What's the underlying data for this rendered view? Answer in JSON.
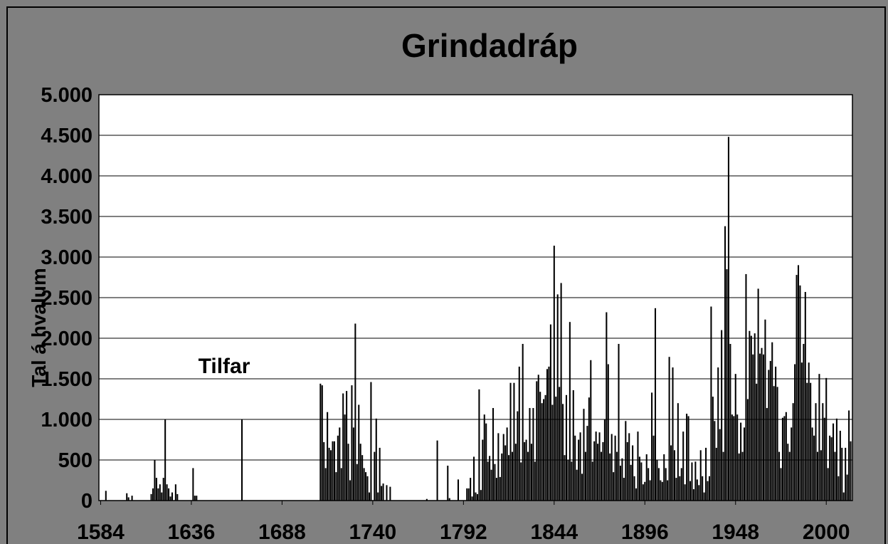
{
  "chart_data": {
    "type": "bar",
    "title": "Grindadráp",
    "ylabel": "Tal á hvalum",
    "annotation": "Tilfar",
    "color": "#000000",
    "grid": true,
    "xlim": [
      1583,
      2015
    ],
    "ylim": [
      0,
      5000
    ],
    "xticks": [
      1584,
      1636,
      1688,
      1740,
      1792,
      1844,
      1896,
      1948,
      2000
    ],
    "yticks": [
      0,
      {
        "value": 500,
        "label": "500"
      },
      {
        "value": 1000,
        "label": "1.000"
      },
      {
        "value": 1500,
        "label": "1.500"
      },
      {
        "value": 2000,
        "label": "2.000"
      },
      {
        "value": 2500,
        "label": "2.500"
      },
      {
        "value": 3000,
        "label": "3.000"
      },
      {
        "value": 3500,
        "label": "3.500"
      },
      {
        "value": 4000,
        "label": "4.000"
      },
      {
        "value": 4500,
        "label": "4.500"
      },
      {
        "value": 5000,
        "label": "5.000"
      }
    ],
    "x": [
      1584,
      1585,
      1586,
      1587,
      1588,
      1589,
      1590,
      1591,
      1592,
      1593,
      1594,
      1595,
      1596,
      1597,
      1598,
      1599,
      1600,
      1601,
      1602,
      1603,
      1604,
      1605,
      1606,
      1607,
      1608,
      1609,
      1610,
      1611,
      1612,
      1613,
      1614,
      1615,
      1616,
      1617,
      1618,
      1619,
      1620,
      1621,
      1622,
      1623,
      1624,
      1625,
      1626,
      1627,
      1628,
      1629,
      1630,
      1631,
      1632,
      1633,
      1634,
      1635,
      1636,
      1637,
      1638,
      1639,
      1640,
      1641,
      1642,
      1643,
      1644,
      1645,
      1646,
      1647,
      1648,
      1649,
      1650,
      1651,
      1652,
      1653,
      1654,
      1655,
      1656,
      1657,
      1658,
      1659,
      1660,
      1661,
      1662,
      1663,
      1664,
      1665,
      1666,
      1667,
      1668,
      1669,
      1670,
      1671,
      1672,
      1673,
      1674,
      1675,
      1676,
      1677,
      1678,
      1679,
      1680,
      1681,
      1682,
      1683,
      1684,
      1685,
      1686,
      1687,
      1688,
      1689,
      1690,
      1691,
      1692,
      1693,
      1694,
      1695,
      1696,
      1697,
      1698,
      1699,
      1700,
      1701,
      1702,
      1703,
      1704,
      1705,
      1706,
      1707,
      1708,
      1709,
      1710,
      1711,
      1712,
      1713,
      1714,
      1715,
      1716,
      1717,
      1718,
      1719,
      1720,
      1721,
      1722,
      1723,
      1724,
      1725,
      1726,
      1727,
      1728,
      1729,
      1730,
      1731,
      1732,
      1733,
      1734,
      1735,
      1736,
      1737,
      1738,
      1739,
      1740,
      1741,
      1742,
      1743,
      1744,
      1745,
      1746,
      1747,
      1748,
      1749,
      1750,
      1751,
      1752,
      1753,
      1754,
      1755,
      1756,
      1757,
      1758,
      1759,
      1760,
      1761,
      1762,
      1763,
      1764,
      1765,
      1766,
      1767,
      1768,
      1769,
      1770,
      1771,
      1772,
      1773,
      1774,
      1775,
      1776,
      1777,
      1778,
      1779,
      1780,
      1781,
      1782,
      1783,
      1784,
      1785,
      1786,
      1787,
      1788,
      1789,
      1790,
      1791,
      1792,
      1793,
      1794,
      1795,
      1796,
      1797,
      1798,
      1799,
      1800,
      1801,
      1802,
      1803,
      1804,
      1805,
      1806,
      1807,
      1808,
      1809,
      1810,
      1811,
      1812,
      1813,
      1814,
      1815,
      1816,
      1817,
      1818,
      1819,
      1820,
      1821,
      1822,
      1823,
      1824,
      1825,
      1826,
      1827,
      1828,
      1829,
      1830,
      1831,
      1832,
      1833,
      1834,
      1835,
      1836,
      1837,
      1838,
      1839,
      1840,
      1841,
      1842,
      1843,
      1844,
      1845,
      1846,
      1847,
      1848,
      1849,
      1850,
      1851,
      1852,
      1853,
      1854,
      1855,
      1856,
      1857,
      1858,
      1859,
      1860,
      1861,
      1862,
      1863,
      1864,
      1865,
      1866,
      1867,
      1868,
      1869,
      1870,
      1871,
      1872,
      1873,
      1874,
      1875,
      1876,
      1877,
      1878,
      1879,
      1880,
      1881,
      1882,
      1883,
      1884,
      1885,
      1886,
      1887,
      1888,
      1889,
      1890,
      1891,
      1892,
      1893,
      1894,
      1895,
      1896,
      1897,
      1898,
      1899,
      1900,
      1901,
      1902,
      1903,
      1904,
      1905,
      1906,
      1907,
      1908,
      1909,
      1910,
      1911,
      1912,
      1913,
      1914,
      1915,
      1916,
      1917,
      1918,
      1919,
      1920,
      1921,
      1922,
      1923,
      1924,
      1925,
      1926,
      1927,
      1928,
      1929,
      1930,
      1931,
      1932,
      1933,
      1934,
      1935,
      1936,
      1937,
      1938,
      1939,
      1940,
      1941,
      1942,
      1943,
      1944,
      1945,
      1946,
      1947,
      1948,
      1949,
      1950,
      1951,
      1952,
      1953,
      1954,
      1955,
      1956,
      1957,
      1958,
      1959,
      1960,
      1961,
      1962,
      1963,
      1964,
      1965,
      1966,
      1967,
      1968,
      1969,
      1970,
      1971,
      1972,
      1973,
      1974,
      1975,
      1976,
      1977,
      1978,
      1979,
      1980,
      1981,
      1982,
      1983,
      1984,
      1985,
      1986,
      1987,
      1988,
      1989,
      1990,
      1991,
      1992,
      1993,
      1994,
      1995,
      1996,
      1997,
      1998,
      1999,
      2000,
      2001,
      2002,
      2003,
      2004,
      2005,
      2006,
      2007,
      2008,
      2009,
      2010,
      2011,
      2012,
      2013,
      2014
    ],
    "values": [
      0,
      0,
      0,
      120,
      0,
      0,
      0,
      0,
      0,
      0,
      0,
      0,
      0,
      0,
      0,
      90,
      40,
      0,
      60,
      0,
      0,
      0,
      0,
      0,
      0,
      0,
      0,
      0,
      0,
      80,
      150,
      500,
      280,
      150,
      200,
      100,
      280,
      1000,
      200,
      150,
      50,
      100,
      0,
      200,
      80,
      0,
      0,
      0,
      0,
      0,
      0,
      0,
      0,
      400,
      60,
      60,
      0,
      0,
      0,
      0,
      0,
      0,
      0,
      0,
      0,
      0,
      0,
      0,
      0,
      0,
      0,
      0,
      0,
      0,
      0,
      0,
      0,
      0,
      0,
      0,
      0,
      1000,
      0,
      0,
      0,
      0,
      0,
      0,
      0,
      0,
      0,
      0,
      0,
      0,
      0,
      0,
      0,
      0,
      0,
      0,
      0,
      0,
      0,
      0,
      0,
      0,
      0,
      0,
      0,
      0,
      0,
      0,
      0,
      0,
      0,
      0,
      0,
      0,
      0,
      0,
      0,
      0,
      0,
      0,
      0,
      0,
      1440,
      1420,
      720,
      400,
      1090,
      650,
      620,
      730,
      730,
      350,
      800,
      900,
      400,
      1320,
      1060,
      1350,
      700,
      250,
      1420,
      900,
      2180,
      450,
      1180,
      700,
      560,
      400,
      350,
      300,
      100,
      1460,
      0,
      600,
      1010,
      100,
      650,
      180,
      210,
      0,
      190,
      0,
      170,
      0,
      0,
      0,
      0,
      0,
      0,
      0,
      0,
      0,
      0,
      0,
      0,
      0,
      0,
      0,
      0,
      0,
      0,
      0,
      0,
      20,
      0,
      0,
      0,
      0,
      0,
      740,
      0,
      0,
      0,
      0,
      0,
      430,
      30,
      0,
      0,
      0,
      0,
      260,
      0,
      0,
      0,
      0,
      150,
      150,
      280,
      50,
      540,
      100,
      80,
      1370,
      130,
      750,
      1060,
      950,
      480,
      550,
      380,
      1140,
      450,
      280,
      830,
      290,
      580,
      820,
      680,
      900,
      560,
      1450,
      600,
      1450,
      700,
      1100,
      1650,
      470,
      1930,
      720,
      750,
      600,
      1140,
      700,
      1140,
      480,
      1470,
      1550,
      1340,
      1200,
      1250,
      1300,
      1620,
      1650,
      2170,
      1180,
      3140,
      1280,
      2540,
      1400,
      2680,
      1190,
      560,
      1300,
      500,
      2200,
      480,
      1360,
      800,
      380,
      750,
      840,
      330,
      1130,
      600,
      920,
      1270,
      1730,
      480,
      730,
      850,
      700,
      840,
      600,
      720,
      1000,
      2320,
      1680,
      580,
      820,
      350,
      800,
      600,
      1930,
      430,
      520,
      280,
      980,
      720,
      830,
      440,
      680,
      300,
      150,
      850,
      540,
      470,
      200,
      230,
      570,
      400,
      250,
      1330,
      800,
      2370,
      500,
      400,
      250,
      230,
      570,
      400,
      250,
      1770,
      680,
      1640,
      620,
      280,
      1200,
      300,
      400,
      850,
      200,
      1070,
      1040,
      240,
      470,
      140,
      480,
      260,
      190,
      620,
      300,
      100,
      650,
      240,
      300,
      2390,
      1280,
      980,
      650,
      1640,
      880,
      2100,
      600,
      3380,
      2850,
      4480,
      1930,
      1060,
      1040,
      1560,
      1060,
      580,
      960,
      600,
      900,
      2790,
      1250,
      2090,
      2030,
      1800,
      2060,
      1440,
      2610,
      1810,
      1880,
      1800,
      2230,
      1140,
      1610,
      1720,
      1950,
      1410,
      1650,
      1400,
      600,
      400,
      1020,
      1040,
      1090,
      700,
      600,
      900,
      1200,
      1680,
      2780,
      2900,
      2650,
      1700,
      1930,
      2570,
      1450,
      1700,
      1450,
      900,
      800,
      1200,
      600,
      1560,
      620,
      1200,
      1020,
      1510,
      400,
      800,
      780,
      950,
      600,
      1010,
      300,
      860,
      650,
      100,
      650,
      320,
      1110,
      730
    ]
  }
}
